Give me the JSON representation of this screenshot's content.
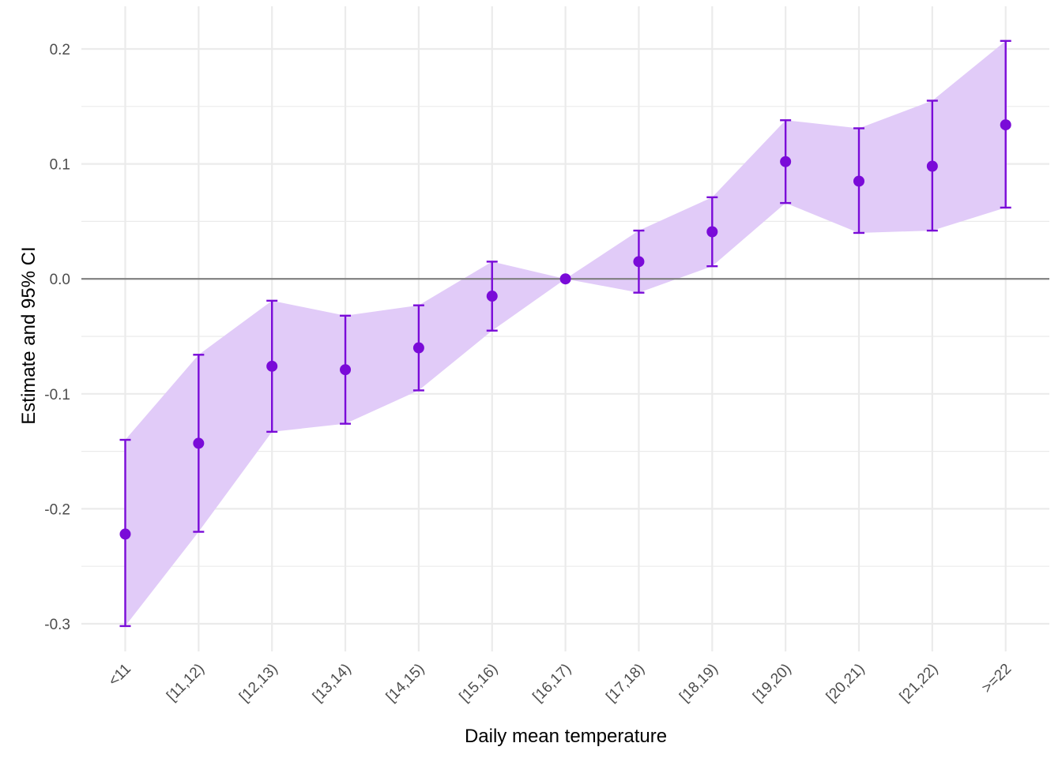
{
  "chart_data": {
    "type": "line",
    "categories": [
      "<11",
      "[11,12)",
      "[12,13)",
      "[13,14)",
      "[14,15)",
      "[15,16)",
      "[16,17)",
      "[17,18)",
      "[18,19)",
      "[19,20)",
      "[20,21)",
      "[21,22)",
      ">=22"
    ],
    "estimate": [
      -0.222,
      -0.143,
      -0.076,
      -0.079,
      -0.06,
      -0.015,
      0.0,
      0.015,
      0.041,
      0.102,
      0.085,
      0.098,
      0.134
    ],
    "ci_lower": [
      -0.302,
      -0.22,
      -0.133,
      -0.126,
      -0.097,
      -0.045,
      0.0,
      -0.012,
      0.011,
      0.066,
      0.04,
      0.042,
      0.062
    ],
    "ci_upper": [
      -0.14,
      -0.066,
      -0.019,
      -0.032,
      -0.023,
      0.015,
      0.0,
      0.042,
      0.071,
      0.138,
      0.131,
      0.155,
      0.207
    ],
    "xlabel": "Daily mean temperature",
    "ylabel": "Estimate and 95% CI",
    "ylim": [
      -0.325,
      0.225
    ],
    "yticks": [
      -0.3,
      -0.2,
      -0.1,
      0.0,
      0.1,
      0.2
    ],
    "ytick_labels": [
      "-0.3",
      "-0.2",
      "-0.1",
      "0.0",
      "0.1",
      "0.2"
    ],
    "reference_line": 0,
    "grid": true,
    "legend": "none",
    "colors": {
      "point": "#7a0bd8",
      "errorbar": "#7a0bd8",
      "ribbon": "#e1cbf8",
      "reference_line": "#7f7f7f",
      "grid": "#ebebeb"
    }
  }
}
